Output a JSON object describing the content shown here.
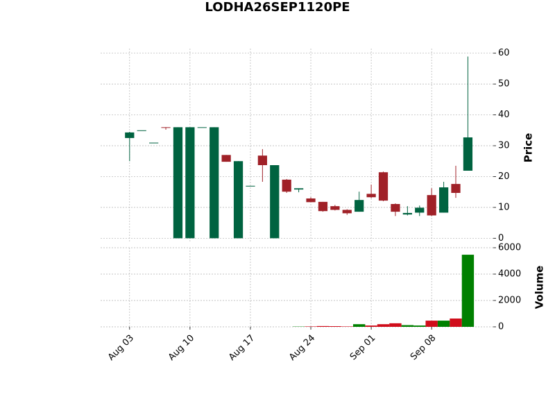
{
  "chart_data": {
    "type": "candlestick",
    "title": "LODHA26SEP1120PE",
    "x": [
      0,
      1,
      2,
      3,
      4,
      5,
      6,
      7,
      8,
      9,
      10,
      11,
      12,
      13,
      14,
      15,
      16,
      17,
      18,
      19,
      20,
      21,
      22,
      23,
      24,
      25,
      26,
      27,
      28
    ],
    "open": [
      32.5,
      35,
      31,
      36,
      0,
      0,
      36,
      0,
      27,
      0,
      17,
      26.8,
      0,
      19,
      15.8,
      12.9,
      11.8,
      10.4,
      9.2,
      8.6,
      14.4,
      21.4,
      11.1,
      7.7,
      8.3,
      14,
      8.3,
      17.6,
      21.9
    ],
    "high": [
      34.5,
      35,
      31,
      36,
      36,
      36,
      36,
      36,
      27,
      25,
      17,
      28.9,
      23.7,
      19.2,
      16.2,
      13.3,
      11.8,
      10.8,
      9.4,
      15.1,
      17.4,
      21.6,
      11.3,
      10.4,
      10.6,
      16.2,
      18.3,
      23.5,
      58.9
    ],
    "low": [
      25,
      35,
      31,
      35.2,
      0,
      0,
      36,
      0,
      24.8,
      0,
      17,
      18.3,
      0,
      14.7,
      14.9,
      11.7,
      8.6,
      9,
      7.6,
      8.6,
      13,
      12,
      7.2,
      7.4,
      7.2,
      7.2,
      8.3,
      13.1,
      21.9
    ],
    "close": [
      34.3,
      35,
      31,
      35.8,
      36,
      36,
      36,
      36,
      24.8,
      25,
      17,
      23.7,
      23.7,
      15.1,
      16.2,
      11.7,
      8.8,
      9.2,
      8.1,
      12.4,
      13.3,
      12.2,
      8.6,
      8.2,
      9.9,
      7.4,
      16.5,
      14.7,
      32.7
    ],
    "volume": [
      0,
      0,
      0,
      0,
      0,
      0,
      0,
      0,
      0,
      0,
      0,
      0,
      0,
      0,
      20,
      30,
      60,
      50,
      30,
      200,
      100,
      200,
      270,
      130,
      100,
      470,
      470,
      630,
      5470
    ],
    "up_color": "#006340",
    "down_color": "#a02128",
    "volume_up_color": "#008000",
    "volume_down_color": "#d00d1b",
    "xlim": [
      -2.4,
      30.1
    ],
    "xticks": [
      {
        "value": 0,
        "label": "Aug 03"
      },
      {
        "value": 5,
        "label": "Aug 10"
      },
      {
        "value": 10,
        "label": "Aug 17"
      },
      {
        "value": 15,
        "label": "Aug 24"
      },
      {
        "value": 20,
        "label": "Sep 01"
      },
      {
        "value": 25,
        "label": "Sep 08"
      }
    ],
    "ylim": [
      -1.5,
      61.5
    ],
    "yticks": [
      0,
      10,
      20,
      30,
      40,
      50,
      60
    ],
    "ylabel": "Price",
    "volume_ylim": [
      0,
      6000
    ],
    "volume_yticks": [
      0,
      2000,
      4000,
      6000
    ],
    "volume_label": "Volume",
    "grid": true
  }
}
